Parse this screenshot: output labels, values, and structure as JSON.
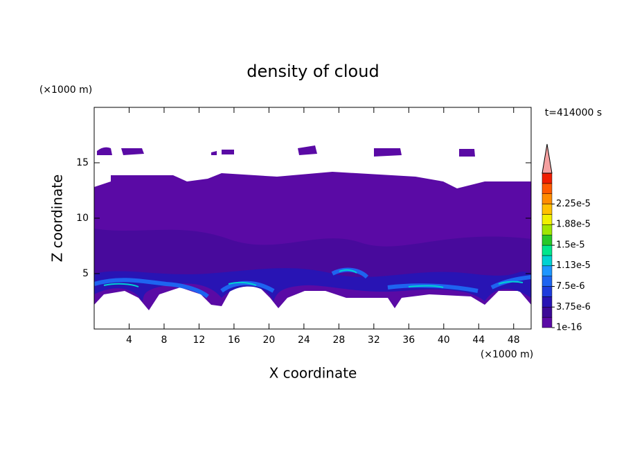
{
  "chart_data": {
    "type": "contour",
    "title": "density of cloud",
    "x_label": "X coordinate",
    "y_label": "Z coordinate",
    "x_unit": "(×1000 m)",
    "y_unit": "(×1000 m)",
    "time_label": "t=414000 s",
    "xlim": [
      0,
      50
    ],
    "ylim": [
      0,
      20
    ],
    "xticks": [
      4,
      8,
      12,
      16,
      20,
      24,
      28,
      32,
      36,
      40,
      44,
      48
    ],
    "yticks": [
      5,
      10,
      15
    ],
    "colorbar": {
      "colors": [
        "#5a0aa5",
        "#3c0a96",
        "#2814b4",
        "#1e3cdc",
        "#1e64f0",
        "#1e96ff",
        "#00d2d2",
        "#00e68c",
        "#28c828",
        "#a0e600",
        "#f0f000",
        "#ffc000",
        "#ff8c00",
        "#ff5a00",
        "#f01e00"
      ],
      "extend_color": "#f5a0a0",
      "ticks": [
        {
          "value": 1e-16,
          "label": "1e-16"
        },
        {
          "value": 3.75e-06,
          "label": "3.75e-6"
        },
        {
          "value": 7.5e-06,
          "label": "7.5e-6"
        },
        {
          "value": 1.13e-05,
          "label": "1.13e-5"
        },
        {
          "value": 1.5e-05,
          "label": "1.5e-5"
        },
        {
          "value": 1.88e-05,
          "label": "1.88e-5"
        },
        {
          "value": 2.25e-05,
          "label": "2.25e-5"
        }
      ]
    }
  }
}
